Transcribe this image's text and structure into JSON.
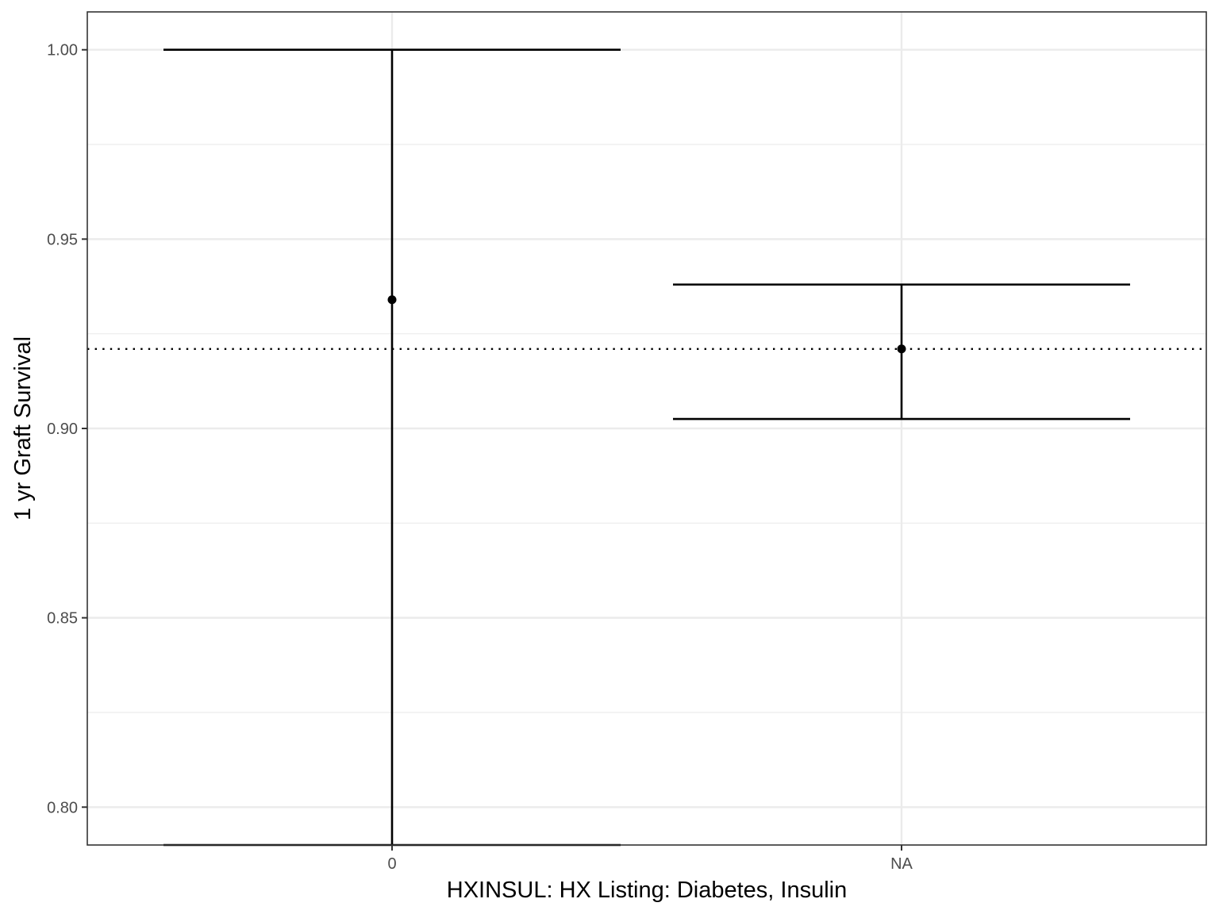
{
  "chart_data": {
    "type": "errorbar",
    "title": "",
    "xlabel": "HXINSUL: HX Listing: Diabetes, Insulin",
    "ylabel": "1 yr Graft Survival",
    "categories": [
      "0",
      "NA"
    ],
    "points": [
      {
        "category": "0",
        "estimate": 0.934,
        "lower": 0.79,
        "upper": 1.0
      },
      {
        "category": "NA",
        "estimate": 0.921,
        "lower": 0.9025,
        "upper": 0.938
      }
    ],
    "reference_line": {
      "value": 0.921,
      "style": "dotted"
    },
    "ylim": [
      0.79,
      1.01
    ],
    "y_ticks": [
      {
        "value": 0.8,
        "label": "0.80"
      },
      {
        "value": 0.85,
        "label": "0.85"
      },
      {
        "value": 0.9,
        "label": "0.90"
      },
      {
        "value": 0.95,
        "label": "0.95"
      },
      {
        "value": 1.0,
        "label": "1.00"
      }
    ],
    "y_minor_ticks": [
      0.825,
      0.875,
      0.925,
      0.975
    ],
    "grid": true,
    "legend": "none",
    "colors": {
      "points": "#000000",
      "grid": "#ebebeb",
      "panel_border": "#333333",
      "tick_label": "#4d4d4d"
    }
  }
}
